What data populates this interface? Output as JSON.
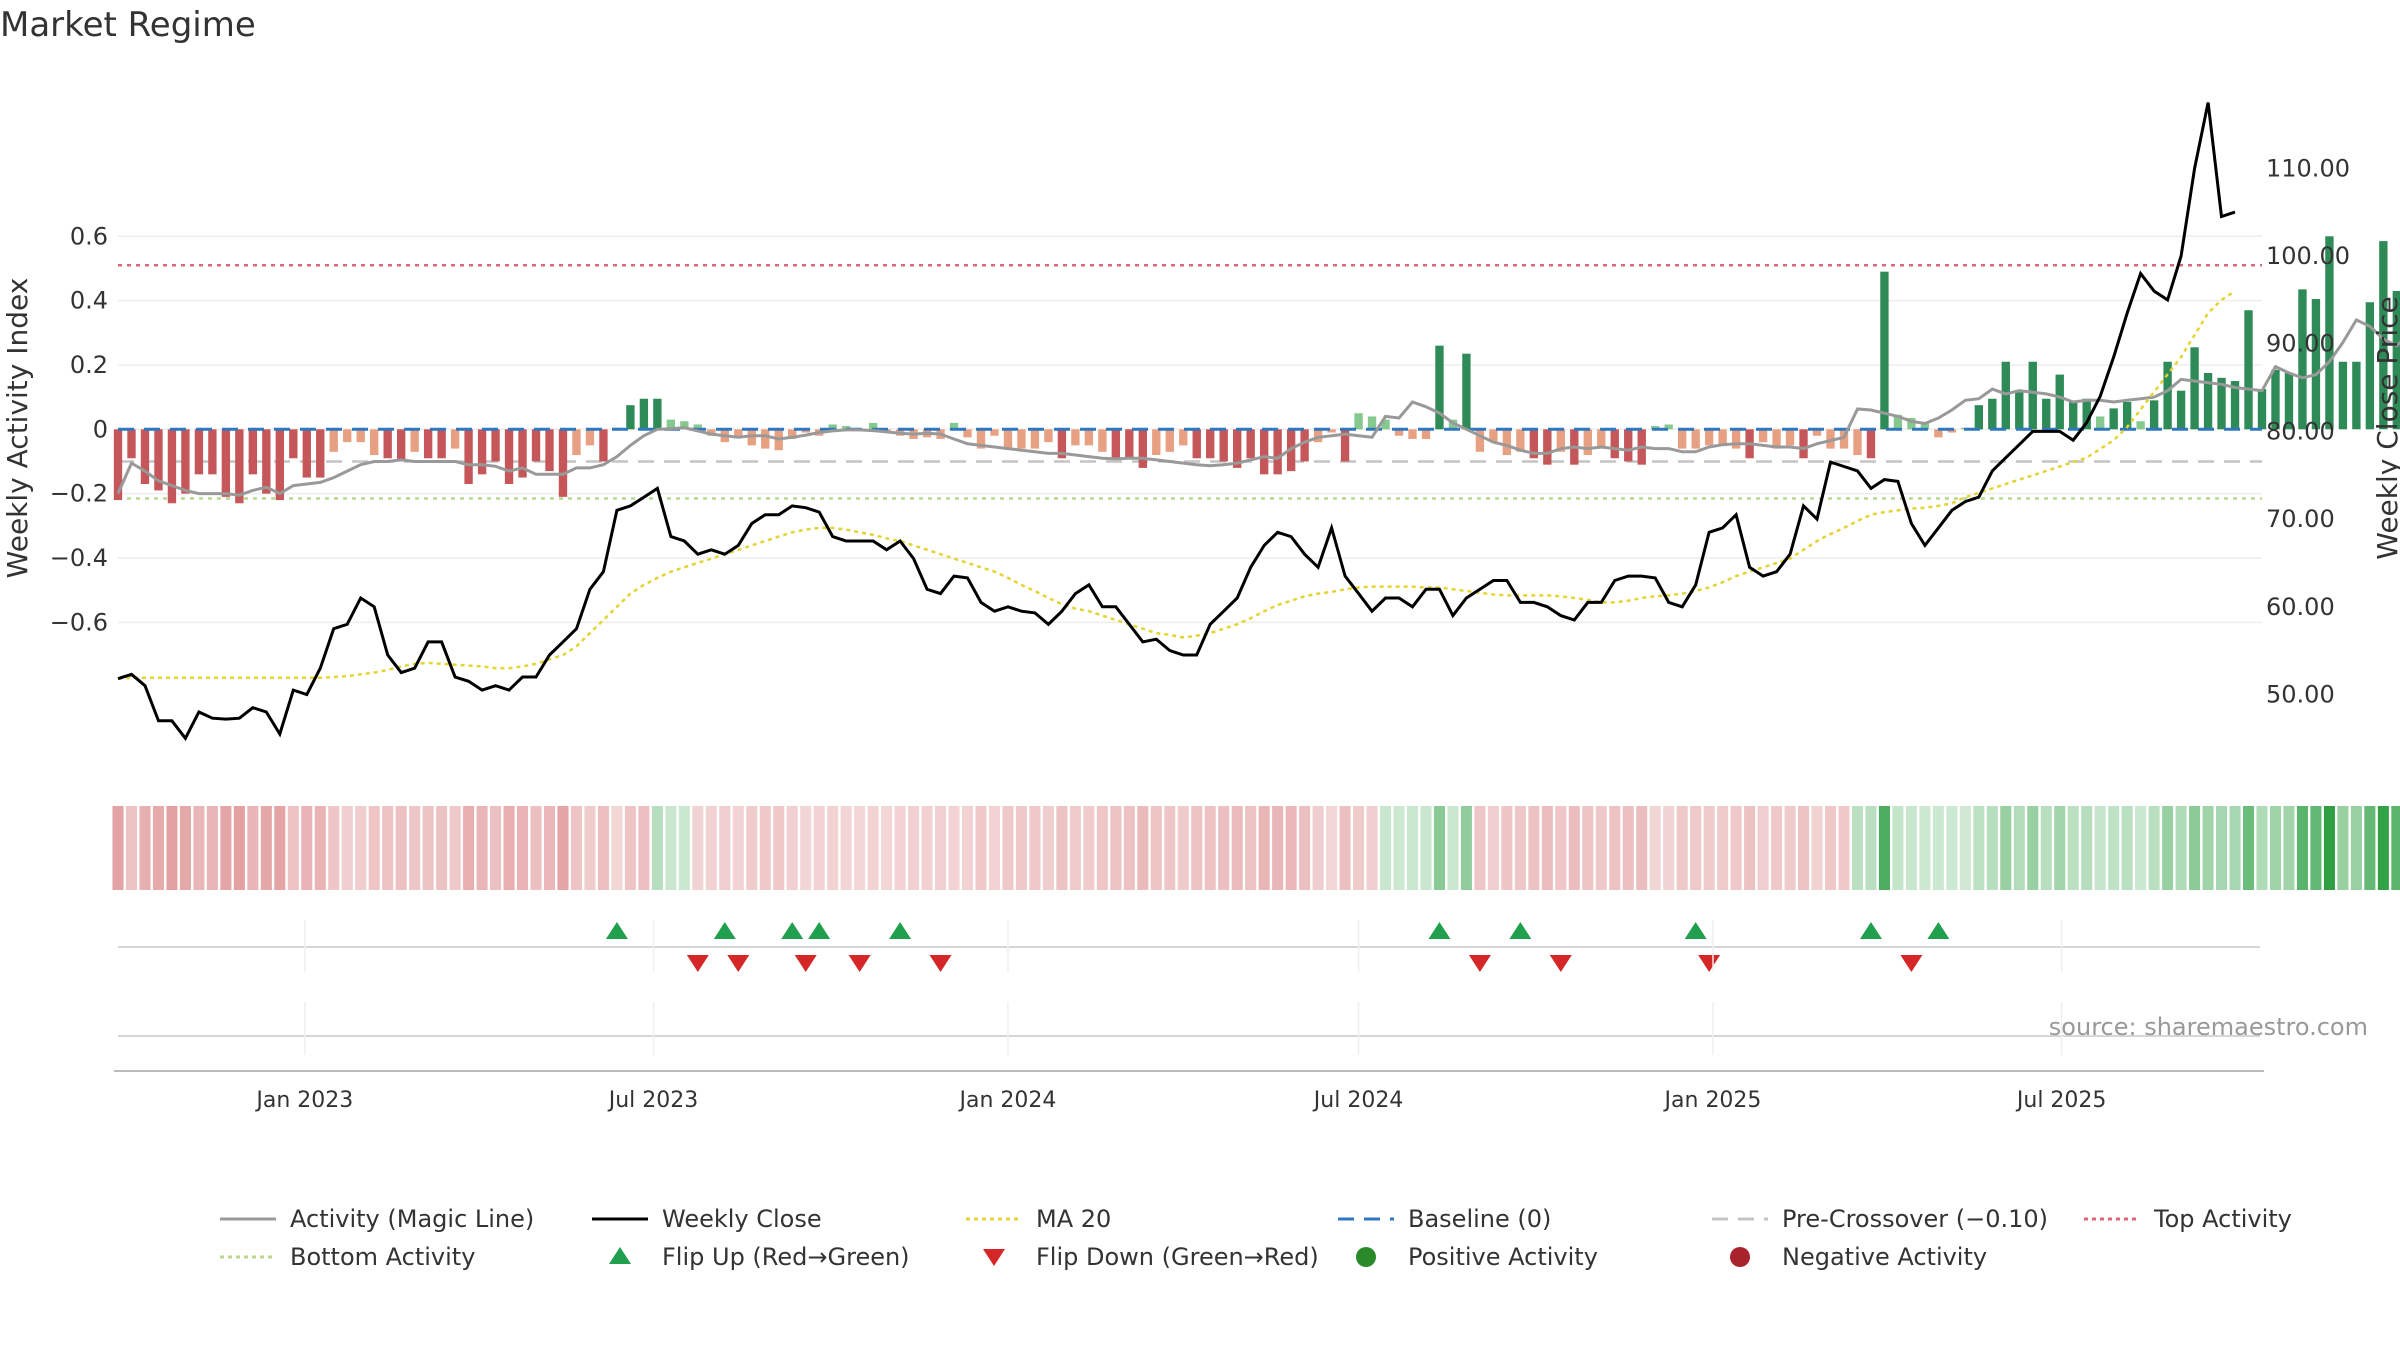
{
  "chart_data": {
    "type": "bar",
    "title": "Market Regime",
    "source": "source: sharemaestro.com",
    "y_left": {
      "label": "Weekly Activity Index",
      "range": [
        -0.65,
        0.6
      ],
      "ticks": [
        0.6,
        0.4,
        0.2,
        0,
        -0.2,
        -0.4,
        -0.6
      ],
      "tick_labels": [
        "0.6",
        "0.4",
        "0.2",
        "0",
        "−0.2",
        "−0.4",
        "−0.6"
      ]
    },
    "y_right": {
      "label": "Weekly Close Price",
      "range": [
        42,
        119
      ],
      "ticks": [
        50,
        60,
        70,
        80,
        90,
        100,
        110
      ],
      "tick_labels": [
        "50.00",
        "60.00",
        "70.00",
        "80.00",
        "90.00",
        "100.00",
        "110.00"
      ]
    },
    "x_axis": {
      "start": "2022-09-26",
      "end": "2025-10-13",
      "ticks": [
        {
          "date": "2023-01-01",
          "label": "Jan 2023"
        },
        {
          "date": "2023-07-01",
          "label": "Jul 2023"
        },
        {
          "date": "2024-01-01",
          "label": "Jan 2024"
        },
        {
          "date": "2024-07-01",
          "label": "Jul 2024"
        },
        {
          "date": "2025-01-01",
          "label": "Jan 2025"
        },
        {
          "date": "2025-07-01",
          "label": "Jul 2025"
        }
      ]
    },
    "reference_lines": {
      "top_activity": 0.51,
      "bottom_activity": -0.215,
      "pre_crossover": -0.1,
      "baseline": 0
    },
    "first_week": "2022-09-26",
    "weekly_close": [
      51.8,
      52.3,
      51.0,
      47.0,
      47.0,
      45.0,
      48.0,
      47.3,
      47.2,
      47.3,
      48.5,
      48.0,
      45.5,
      50.5,
      50.0,
      53.0,
      57.5,
      58.0,
      61.0,
      60.0,
      54.5,
      52.5,
      53.0,
      56.0,
      56.0,
      52.0,
      51.5,
      50.5,
      51.0,
      50.5,
      52.0,
      52.0,
      54.5,
      56.0,
      57.5,
      62.0,
      64.0,
      71.0,
      71.5,
      72.5,
      73.5,
      68.0,
      67.5,
      66.0,
      66.5,
      66.0,
      67.0,
      69.5,
      70.5,
      70.5,
      71.5,
      71.3,
      70.8,
      68.0,
      67.5,
      67.5,
      67.5,
      66.5,
      67.5,
      65.5,
      62.0,
      61.5,
      63.5,
      63.3,
      60.5,
      59.5,
      60.0,
      59.5,
      59.3,
      58.0,
      59.5,
      61.5,
      62.5,
      60.0,
      60.0,
      58.0,
      56.0,
      56.3,
      55.0,
      54.5,
      54.5,
      58.0,
      59.5,
      61.0,
      64.5,
      67.0,
      68.5,
      68.0,
      66.0,
      64.5,
      69.0,
      63.5,
      61.5,
      59.5,
      61.0,
      61.0,
      60.0,
      62.0,
      62.0,
      59.0,
      61.0,
      62.0,
      63.0,
      63.0,
      60.5,
      60.5,
      60.0,
      59.0,
      58.5,
      60.5,
      60.5,
      63.0,
      63.5,
      63.5,
      63.3,
      60.5,
      60.0,
      62.5,
      68.5,
      69.0,
      70.5,
      64.5,
      63.5,
      64.0,
      66.0,
      71.5,
      70.0,
      76.5,
      76.0,
      75.5,
      73.5,
      74.5,
      74.3,
      69.5,
      67.0,
      69.0,
      71.0,
      72.0,
      72.5,
      75.5,
      77.0,
      78.5,
      80.0,
      80.0,
      80.0,
      79.0,
      81.0,
      84.0,
      88.5,
      93.5,
      98.0,
      96.0,
      95.0,
      100.0,
      110.0,
      117.5,
      104.5,
      105.0
    ],
    "series": [
      {
        "name": "Activity (Magic Line)",
        "values": [
          -0.2,
          -0.105,
          -0.13,
          -0.16,
          -0.175,
          -0.19,
          -0.2,
          -0.2,
          -0.2,
          -0.205,
          -0.19,
          -0.18,
          -0.2,
          -0.175,
          -0.17,
          -0.165,
          -0.15,
          -0.13,
          -0.11,
          -0.1,
          -0.1,
          -0.095,
          -0.1,
          -0.1,
          -0.1,
          -0.1,
          -0.11,
          -0.11,
          -0.115,
          -0.13,
          -0.12,
          -0.14,
          -0.14,
          -0.14,
          -0.12,
          -0.12,
          -0.11,
          -0.085,
          -0.05,
          -0.02,
          0.0,
          0.002,
          0.005,
          -0.005,
          -0.015,
          -0.02,
          -0.025,
          -0.02,
          -0.02,
          -0.03,
          -0.025,
          -0.018,
          -0.01,
          -0.005,
          -0.002,
          -0.002,
          -0.004,
          -0.008,
          -0.012,
          -0.015,
          -0.012,
          -0.015,
          -0.03,
          -0.045,
          -0.05,
          -0.055,
          -0.06,
          -0.065,
          -0.07,
          -0.075,
          -0.075,
          -0.08,
          -0.085,
          -0.09,
          -0.092,
          -0.09,
          -0.09,
          -0.095,
          -0.1,
          -0.105,
          -0.11,
          -0.113,
          -0.11,
          -0.105,
          -0.095,
          -0.085,
          -0.09,
          -0.06,
          -0.04,
          -0.025,
          -0.02,
          -0.015,
          -0.02,
          -0.025,
          0.04,
          0.035,
          0.085,
          0.07,
          0.05,
          0.02,
          0.0,
          -0.02,
          -0.04,
          -0.05,
          -0.065,
          -0.075,
          -0.075,
          -0.06,
          -0.055,
          -0.06,
          -0.055,
          -0.06,
          -0.065,
          -0.055,
          -0.06,
          -0.06,
          -0.07,
          -0.07,
          -0.055,
          -0.048,
          -0.045,
          -0.045,
          -0.05,
          -0.055,
          -0.055,
          -0.06,
          -0.045,
          -0.035,
          -0.025,
          0.063,
          0.06,
          0.05,
          0.04,
          0.025,
          0.018,
          0.035,
          0.06,
          0.09,
          0.095,
          0.125,
          0.11,
          0.12,
          0.115,
          0.11,
          0.1,
          0.085,
          0.09,
          0.09,
          0.085,
          0.09,
          0.095,
          0.1,
          0.12,
          0.155,
          0.15,
          0.145,
          0.14,
          0.13,
          0.125,
          0.12,
          0.195,
          0.175,
          0.16,
          0.17,
          0.21,
          0.27,
          0.34,
          0.32,
          0.28,
          0.26,
          0.3,
          0.37,
          0.4,
          0.38,
          0.37
        ]
      },
      {
        "name": "Weekly Close",
        "ref": "weekly_close"
      },
      {
        "name": "MA 20",
        "values": [
          51.8,
          51.9,
          51.9,
          51.9,
          51.9,
          51.9,
          51.9,
          51.9,
          51.9,
          51.9,
          51.9,
          51.9,
          51.9,
          51.9,
          51.9,
          51.9,
          52.0,
          52.1,
          52.3,
          52.5,
          52.8,
          53.2,
          53.5,
          53.6,
          53.5,
          53.4,
          53.3,
          53.2,
          53.0,
          53.0,
          53.2,
          53.5,
          54.0,
          54.5,
          55.5,
          57.0,
          58.5,
          60.0,
          61.5,
          62.5,
          63.3,
          64.0,
          64.5,
          65.0,
          65.5,
          66.0,
          66.5,
          67.0,
          67.5,
          68.0,
          68.5,
          68.8,
          69.0,
          69.0,
          68.8,
          68.5,
          68.2,
          67.8,
          67.5,
          67.0,
          66.5,
          66.0,
          65.5,
          65.0,
          64.5,
          64.0,
          63.3,
          62.5,
          61.8,
          61.0,
          60.3,
          59.8,
          59.5,
          59.0,
          58.5,
          58.0,
          57.5,
          57.0,
          56.8,
          56.5,
          56.7,
          57.0,
          57.5,
          58.0,
          58.7,
          59.5,
          60.2,
          60.7,
          61.2,
          61.5,
          61.7,
          62.0,
          62.2,
          62.3,
          62.3,
          62.3,
          62.3,
          62.2,
          62.2,
          62.0,
          61.8,
          61.6,
          61.4,
          61.3,
          61.3,
          61.3,
          61.3,
          61.2,
          61.0,
          60.8,
          60.5,
          60.5,
          60.7,
          61.0,
          61.2,
          61.3,
          61.5,
          61.8,
          62.2,
          62.8,
          63.5,
          64.0,
          64.5,
          65.0,
          65.5,
          66.5,
          67.5,
          68.3,
          69.0,
          69.8,
          70.5,
          70.8,
          71.0,
          71.2,
          71.3,
          71.5,
          71.8,
          72.5,
          73.0,
          73.5,
          74.0,
          74.5,
          75.0,
          75.5,
          76.0,
          76.5,
          77.0,
          78.0,
          79.0,
          80.5,
          82.5,
          84.5,
          86.5,
          88.5,
          91.0,
          93.5,
          95.0,
          96.0
        ]
      },
      {
        "name": "Weekly Activity Index",
        "values": [
          -0.22,
          -0.09,
          -0.17,
          -0.19,
          -0.23,
          -0.2,
          -0.14,
          -0.14,
          -0.21,
          -0.23,
          -0.14,
          -0.2,
          -0.22,
          -0.09,
          -0.15,
          -0.15,
          -0.07,
          -0.04,
          -0.04,
          -0.08,
          -0.09,
          -0.1,
          -0.07,
          -0.09,
          -0.09,
          -0.06,
          -0.17,
          -0.14,
          -0.1,
          -0.17,
          -0.15,
          -0.1,
          -0.13,
          -0.21,
          -0.08,
          -0.05,
          -0.1,
          0.005,
          0.075,
          0.095,
          0.095,
          0.03,
          0.025,
          0.015,
          -0.02,
          -0.04,
          -0.02,
          -0.05,
          -0.06,
          -0.065,
          -0.03,
          -0.01,
          -0.02,
          0.015,
          0.01,
          -0.005,
          0.02,
          -0.01,
          -0.02,
          -0.03,
          -0.025,
          -0.03,
          0.02,
          -0.025,
          -0.06,
          -0.02,
          -0.06,
          -0.06,
          -0.06,
          -0.04,
          -0.09,
          -0.05,
          -0.05,
          -0.07,
          -0.09,
          -0.09,
          -0.12,
          -0.08,
          -0.07,
          -0.05,
          -0.09,
          -0.09,
          -0.1,
          -0.12,
          -0.09,
          -0.14,
          -0.14,
          -0.13,
          -0.1,
          -0.04,
          -0.01,
          -0.1,
          0.05,
          0.04,
          0.03,
          -0.02,
          -0.03,
          -0.03,
          0.26,
          0.03,
          0.235,
          -0.07,
          -0.04,
          -0.08,
          -0.07,
          -0.09,
          -0.11,
          -0.07,
          -0.11,
          -0.08,
          -0.06,
          -0.09,
          -0.1,
          -0.11,
          0.01,
          0.015,
          -0.06,
          -0.06,
          -0.05,
          -0.05,
          -0.06,
          -0.09,
          -0.04,
          -0.06,
          -0.05,
          -0.09,
          -0.02,
          -0.06,
          -0.06,
          -0.08,
          -0.09,
          0.49,
          0.045,
          0.035,
          0.02,
          -0.025,
          -0.01,
          0.005,
          0.075,
          0.095,
          0.21,
          0.115,
          0.21,
          0.095,
          0.17,
          0.085,
          0.095,
          0.04,
          0.065,
          0.085,
          0.025,
          0.09,
          0.21,
          0.12,
          0.255,
          0.175,
          0.16,
          0.15,
          0.37,
          0.125,
          0.185,
          0.175,
          0.435,
          0.405,
          0.6,
          0.21,
          0.21,
          0.395,
          0.585,
          0.43,
          0.3,
          0.345
        ]
      }
    ],
    "bar_colors": {
      "strong_negative": "#c5575a",
      "weak_negative": "#e8a083",
      "strong_positive": "#2e8b57",
      "weak_positive": "#86c98e"
    },
    "flip_up_weeks": [
      37,
      45,
      50,
      52,
      58,
      98,
      104,
      117,
      130,
      135
    ],
    "flip_down_weeks": [
      43,
      46,
      51,
      55,
      61,
      101,
      107,
      118,
      133
    ],
    "legend": {
      "placement": "bottom",
      "items": [
        {
          "label": "Activity (Magic Line)",
          "style": "solid",
          "color": "#999999"
        },
        {
          "label": "Weekly Close",
          "style": "solid",
          "color": "#000000"
        },
        {
          "label": "MA 20",
          "style": "dotted",
          "color": "#e5d333"
        },
        {
          "label": "Baseline (0)",
          "style": "dashed",
          "color": "#2f78c0"
        },
        {
          "label": "Pre-Crossover (−0.10)",
          "style": "dashed",
          "color": "#c4c4c4"
        },
        {
          "label": "Top Activity",
          "style": "dotted",
          "color": "#d9687a"
        },
        {
          "label": "Bottom Activity",
          "style": "dotted",
          "color": "#b5d98f"
        },
        {
          "label": "Flip Up (Red→Green)",
          "style": "triangle-up",
          "color": "#20a04e"
        },
        {
          "label": "Flip Down (Green→Red)",
          "style": "triangle-down",
          "color": "#d62728"
        },
        {
          "label": "Positive Activity",
          "style": "dot",
          "color": "#2a8a2a"
        },
        {
          "label": "Negative Activity",
          "style": "dot",
          "color": "#a8232b"
        }
      ]
    },
    "grid": true
  }
}
